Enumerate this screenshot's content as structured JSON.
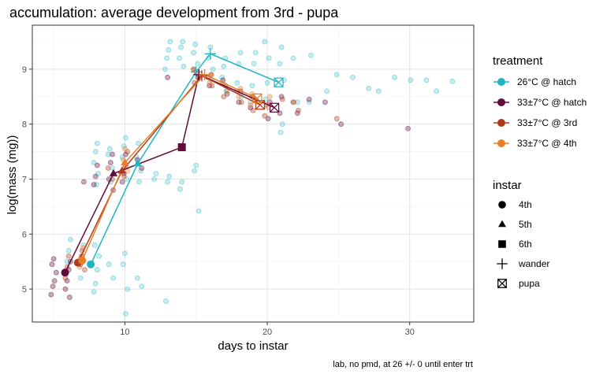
{
  "chart_data": {
    "type": "scatter",
    "title": "accumulation: average development from 3rd - pupa",
    "xlabel": "days to instar",
    "ylabel": "log(mass (mg))",
    "caption": "lab, no pmd, at 26 +/- 0 until enter trt",
    "xlim": [
      3.5,
      34.5
    ],
    "ylim": [
      4.4,
      9.8
    ],
    "x_ticks": [
      10,
      20,
      30
    ],
    "y_ticks": [
      5,
      6,
      7,
      8,
      9
    ],
    "grid": true,
    "legend_position": "right",
    "treatment_legend": {
      "title": "treatment",
      "items": [
        {
          "label": "26°C @ hatch",
          "color": "#1FB5C4"
        },
        {
          "label": "33±7°C @ hatch",
          "color": "#610C3C"
        },
        {
          "label": "33±7°C @ 3rd",
          "color": "#B03A1C"
        },
        {
          "label": "33±7°C @ 4th",
          "color": "#E97E2A"
        }
      ]
    },
    "instar_legend": {
      "title": "instar",
      "items": [
        {
          "label": "4th",
          "shape": "circle"
        },
        {
          "label": "5th",
          "shape": "triangle"
        },
        {
          "label": "6th",
          "shape": "square"
        },
        {
          "label": "wander",
          "shape": "plus"
        },
        {
          "label": "pupa",
          "shape": "boxx"
        }
      ]
    },
    "series": [
      {
        "color": "#1FB5C4",
        "points": [
          {
            "x": 7.6,
            "y": 5.45,
            "instar": "4th"
          },
          {
            "x": 10.9,
            "y": 7.28,
            "instar": "5th"
          },
          {
            "x": 15.0,
            "y": 8.95,
            "instar": "wander"
          },
          {
            "x": 16.0,
            "y": 9.28,
            "instar": "wander"
          },
          {
            "x": 20.8,
            "y": 8.76,
            "instar": "pupa"
          }
        ]
      },
      {
        "color": "#610C3C",
        "points": [
          {
            "x": 5.8,
            "y": 5.3,
            "instar": "4th"
          },
          {
            "x": 9.2,
            "y": 7.1,
            "instar": "5th"
          },
          {
            "x": 14.0,
            "y": 7.58,
            "instar": "6th"
          },
          {
            "x": 15.2,
            "y": 8.9,
            "instar": "wander"
          },
          {
            "x": 20.5,
            "y": 8.3,
            "instar": "pupa"
          }
        ]
      },
      {
        "color": "#B03A1C",
        "points": [
          {
            "x": 6.7,
            "y": 5.48,
            "instar": "4th"
          },
          {
            "x": 9.8,
            "y": 7.15,
            "instar": "5th"
          },
          {
            "x": 15.4,
            "y": 8.88,
            "instar": "wander"
          },
          {
            "x": 19.5,
            "y": 8.35,
            "instar": "pupa"
          }
        ]
      },
      {
        "color": "#E97E2A",
        "points": [
          {
            "x": 7.0,
            "y": 5.52,
            "instar": "4th"
          },
          {
            "x": 10.0,
            "y": 7.3,
            "instar": "5th"
          },
          {
            "x": 15.6,
            "y": 8.9,
            "instar": "wander"
          },
          {
            "x": 19.3,
            "y": 8.47,
            "instar": "pupa"
          }
        ]
      }
    ],
    "raw_points": [
      {
        "color": "#1FB5C4",
        "points": [
          [
            6,
            5.3
          ],
          [
            6,
            5.5
          ],
          [
            6,
            5.7
          ],
          [
            6,
            5.9
          ],
          [
            7,
            5.2
          ],
          [
            7,
            5.5
          ],
          [
            7,
            5.8
          ],
          [
            8,
            4.95
          ],
          [
            8,
            5.1
          ],
          [
            8,
            5.35
          ],
          [
            8,
            5.6
          ],
          [
            8,
            5.8
          ],
          [
            8,
            6.9
          ],
          [
            8,
            7.1
          ],
          [
            8,
            7.3
          ],
          [
            8,
            7.5
          ],
          [
            8,
            7.65
          ],
          [
            9,
            5.2
          ],
          [
            9,
            5.45
          ],
          [
            9,
            6.95
          ],
          [
            9,
            7.2
          ],
          [
            9,
            7.45
          ],
          [
            9,
            7.55
          ],
          [
            10,
            4.55
          ],
          [
            10,
            5.0
          ],
          [
            10,
            5.45
          ],
          [
            10,
            5.65
          ],
          [
            10,
            7.0
          ],
          [
            10,
            7.4
          ],
          [
            10,
            7.6
          ],
          [
            10,
            7.75
          ],
          [
            11,
            5.05
          ],
          [
            11,
            5.2
          ],
          [
            11,
            6.95
          ],
          [
            11,
            7.15
          ],
          [
            11,
            7.4
          ],
          [
            11,
            7.65
          ],
          [
            12,
            7.0
          ],
          [
            12,
            7.1
          ],
          [
            13,
            4.78
          ],
          [
            13,
            6.95
          ],
          [
            13,
            7.05
          ],
          [
            13,
            9.0
          ],
          [
            13,
            9.2
          ],
          [
            13,
            9.35
          ],
          [
            13,
            9.5
          ],
          [
            14,
            6.82
          ],
          [
            14,
            6.95
          ],
          [
            14,
            9.05
          ],
          [
            14,
            9.2
          ],
          [
            14,
            9.4
          ],
          [
            14,
            9.5
          ],
          [
            15,
            6.42
          ],
          [
            15,
            7.15
          ],
          [
            15,
            7.25
          ],
          [
            15,
            9.1
          ],
          [
            15,
            9.3
          ],
          [
            15,
            9.45
          ],
          [
            16,
            8.8
          ],
          [
            16,
            9.0
          ],
          [
            16,
            9.2
          ],
          [
            16,
            9.4
          ],
          [
            17,
            8.6
          ],
          [
            17,
            8.85
          ],
          [
            17,
            9.05
          ],
          [
            17,
            9.2
          ],
          [
            18,
            8.5
          ],
          [
            18,
            8.75
          ],
          [
            18,
            9.1
          ],
          [
            18,
            9.3
          ],
          [
            19,
            8.4
          ],
          [
            19,
            8.7
          ],
          [
            19,
            9.1
          ],
          [
            19,
            9.3
          ],
          [
            20,
            8.45
          ],
          [
            20,
            8.75
          ],
          [
            20,
            9.2
          ],
          [
            20,
            9.5
          ],
          [
            21,
            7.85
          ],
          [
            21,
            8.0
          ],
          [
            21,
            8.8
          ],
          [
            21,
            9.1
          ],
          [
            21,
            9.4
          ],
          [
            22,
            8.4
          ],
          [
            22,
            9.2
          ],
          [
            23,
            8.4
          ],
          [
            23,
            9.25
          ],
          [
            24,
            8.6
          ],
          [
            25,
            8.9
          ],
          [
            26,
            8.85
          ],
          [
            27,
            8.65
          ],
          [
            28,
            8.6
          ],
          [
            29,
            8.85
          ],
          [
            30,
            8.8
          ],
          [
            31,
            8.8
          ],
          [
            32,
            8.6
          ],
          [
            33,
            8.78
          ]
        ]
      },
      {
        "color": "#610C3C",
        "points": [
          [
            5,
            4.9
          ],
          [
            5,
            5.05
          ],
          [
            5,
            5.15
          ],
          [
            5,
            5.3
          ],
          [
            5,
            5.45
          ],
          [
            5,
            5.55
          ],
          [
            6,
            4.85
          ],
          [
            6,
            5.0
          ],
          [
            6,
            5.15
          ],
          [
            6,
            5.35
          ],
          [
            6,
            5.5
          ],
          [
            7,
            5.45
          ],
          [
            7,
            5.6
          ],
          [
            7,
            6.95
          ],
          [
            8,
            6.9
          ],
          [
            8,
            7.05
          ],
          [
            8,
            7.25
          ],
          [
            9,
            6.8
          ],
          [
            9,
            7.0
          ],
          [
            9,
            7.3
          ],
          [
            9,
            7.45
          ],
          [
            10,
            6.95
          ],
          [
            10,
            7.1
          ],
          [
            10,
            7.45
          ],
          [
            11,
            7.2
          ],
          [
            11,
            7.35
          ],
          [
            13,
            8.85
          ],
          [
            15,
            8.85
          ],
          [
            15,
            9.0
          ],
          [
            16,
            8.7
          ],
          [
            16,
            8.9
          ],
          [
            17,
            8.55
          ],
          [
            17,
            8.8
          ],
          [
            18,
            8.4
          ],
          [
            18,
            8.6
          ],
          [
            19,
            8.3
          ],
          [
            19,
            8.5
          ],
          [
            20,
            8.1
          ],
          [
            20,
            8.4
          ],
          [
            21,
            8.2
          ],
          [
            21,
            8.5
          ],
          [
            22,
            8.2
          ],
          [
            22,
            8.4
          ],
          [
            23,
            8.45
          ],
          [
            24,
            8.4
          ],
          [
            25,
            8.0
          ],
          [
            30,
            7.92
          ]
        ]
      },
      {
        "color": "#B03A1C",
        "points": [
          [
            6,
            5.2
          ],
          [
            6,
            5.4
          ],
          [
            6,
            5.6
          ],
          [
            7,
            5.35
          ],
          [
            7,
            5.55
          ],
          [
            7,
            5.7
          ],
          [
            9,
            7.0
          ],
          [
            9,
            7.2
          ],
          [
            10,
            7.05
          ],
          [
            10,
            7.25
          ],
          [
            10,
            7.5
          ],
          [
            15,
            8.75
          ],
          [
            15,
            8.95
          ],
          [
            16,
            8.7
          ],
          [
            16,
            8.85
          ],
          [
            17,
            8.5
          ],
          [
            17,
            8.7
          ],
          [
            18,
            8.4
          ],
          [
            18,
            8.6
          ],
          [
            19,
            8.25
          ],
          [
            19,
            8.45
          ],
          [
            20,
            8.15
          ],
          [
            20,
            8.35
          ],
          [
            21,
            8.45
          ],
          [
            22,
            8.25
          ],
          [
            25,
            8.1
          ]
        ]
      },
      {
        "color": "#E97E2A",
        "points": [
          [
            7,
            5.4
          ],
          [
            7,
            5.6
          ],
          [
            7,
            5.75
          ],
          [
            10,
            7.15
          ],
          [
            10,
            7.35
          ],
          [
            10,
            7.55
          ],
          [
            15,
            8.85
          ],
          [
            15,
            9.0
          ],
          [
            16,
            8.75
          ],
          [
            16,
            8.9
          ],
          [
            17,
            8.6
          ],
          [
            17,
            8.75
          ],
          [
            18,
            8.5
          ],
          [
            18,
            8.65
          ],
          [
            19,
            8.35
          ],
          [
            19,
            8.55
          ],
          [
            20,
            8.3
          ],
          [
            20,
            8.5
          ],
          [
            22,
            8.4
          ]
        ]
      }
    ]
  }
}
